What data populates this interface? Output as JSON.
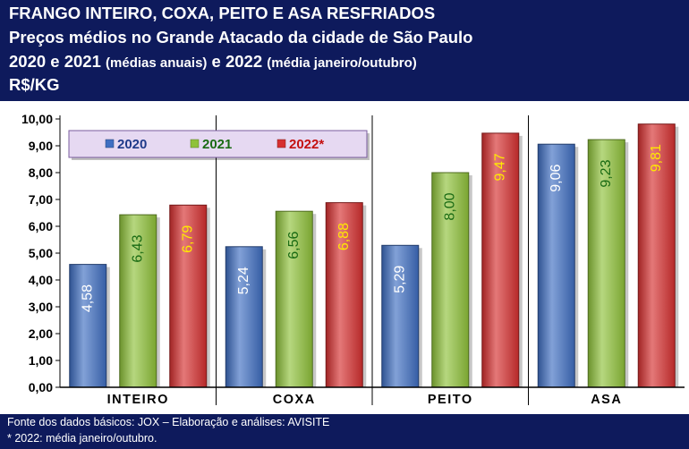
{
  "header": {
    "title": "FRANGO INTEIRO, COXA, PEITO E ASA RESFRIADOS",
    "subtitle": "Preços médios no Grande Atacado da cidade de São Paulo",
    "period_main_a": "2020 e 2021",
    "period_note_a": "(médias anuais)",
    "period_main_b": "e 2022",
    "period_note_b": "(média janeiro/outubro)",
    "unit": "R$/KG"
  },
  "footer": {
    "source": "Fonte dos dados básicos: JOX – Elaboração e análises: AVISITE",
    "note": "* 2022: média janeiro/outubro."
  },
  "chart_data": {
    "type": "bar",
    "categories": [
      "INTEIRO",
      "COXA",
      "PEITO",
      "ASA"
    ],
    "series": [
      {
        "name": "2020",
        "values": [
          4.58,
          5.24,
          5.29,
          9.06
        ],
        "labels": [
          "4,58",
          "5,24",
          "5,29",
          "9,06"
        ],
        "color": "#3f6fc2",
        "label_color": "#ffffff",
        "legend_color": "#1f3a8a"
      },
      {
        "name": "2021",
        "values": [
          6.43,
          6.56,
          8.0,
          9.23
        ],
        "labels": [
          "6,43",
          "6,56",
          "8,00",
          "9,23"
        ],
        "color": "#8fc23a",
        "label_color": "#1a6b14",
        "legend_color": "#1a6b14"
      },
      {
        "name": "2022*",
        "values": [
          6.79,
          6.88,
          9.47,
          9.81
        ],
        "labels": [
          "6,79",
          "6,88",
          "9,47",
          "9,81"
        ],
        "color": "#d63030",
        "label_color": "#ffe800",
        "legend_color": "#c41010"
      }
    ],
    "yticks": [
      "0,00",
      "1,00",
      "2,00",
      "3,00",
      "4,00",
      "5,00",
      "6,00",
      "7,00",
      "8,00",
      "9,00",
      "10,00"
    ],
    "ylim": [
      0,
      10
    ],
    "grid": false,
    "legend_position": "top-left"
  }
}
